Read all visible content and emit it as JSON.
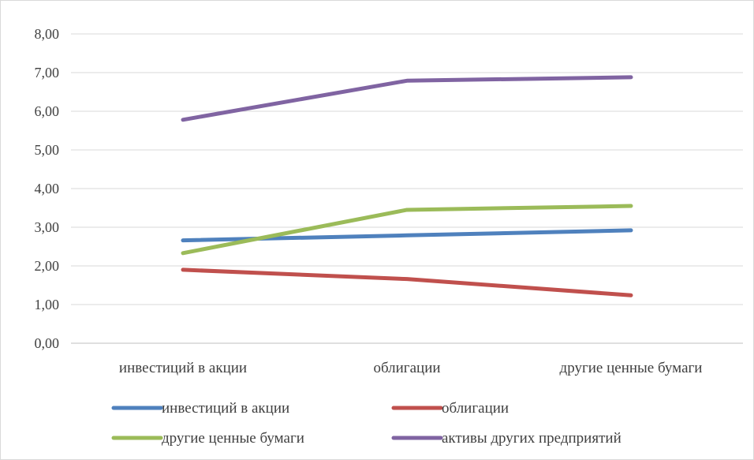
{
  "chart_data": {
    "type": "line",
    "title": "",
    "xlabel": "",
    "ylabel": "",
    "categories": [
      "инвестиций в акции",
      "облигации",
      "другие ценные бумаги"
    ],
    "y_ticks": [
      "0,00",
      "1,00",
      "2,00",
      "3,00",
      "4,00",
      "5,00",
      "6,00",
      "7,00",
      "8,00"
    ],
    "ylim": [
      0,
      8
    ],
    "grid": true,
    "legend_position": "bottom",
    "series": [
      {
        "name": "инвестиций в акции",
        "color": "#4f81bd",
        "values": [
          2.66,
          2.79,
          2.92
        ]
      },
      {
        "name": "облигации",
        "color": "#c0504d",
        "values": [
          1.9,
          1.66,
          1.24
        ]
      },
      {
        "name": "другие ценные бумаги",
        "color": "#9bbb59",
        "values": [
          2.33,
          3.45,
          3.55
        ]
      },
      {
        "name": "активы других предприятий",
        "color": "#8064a2",
        "values": [
          5.78,
          6.79,
          6.88
        ]
      }
    ]
  }
}
